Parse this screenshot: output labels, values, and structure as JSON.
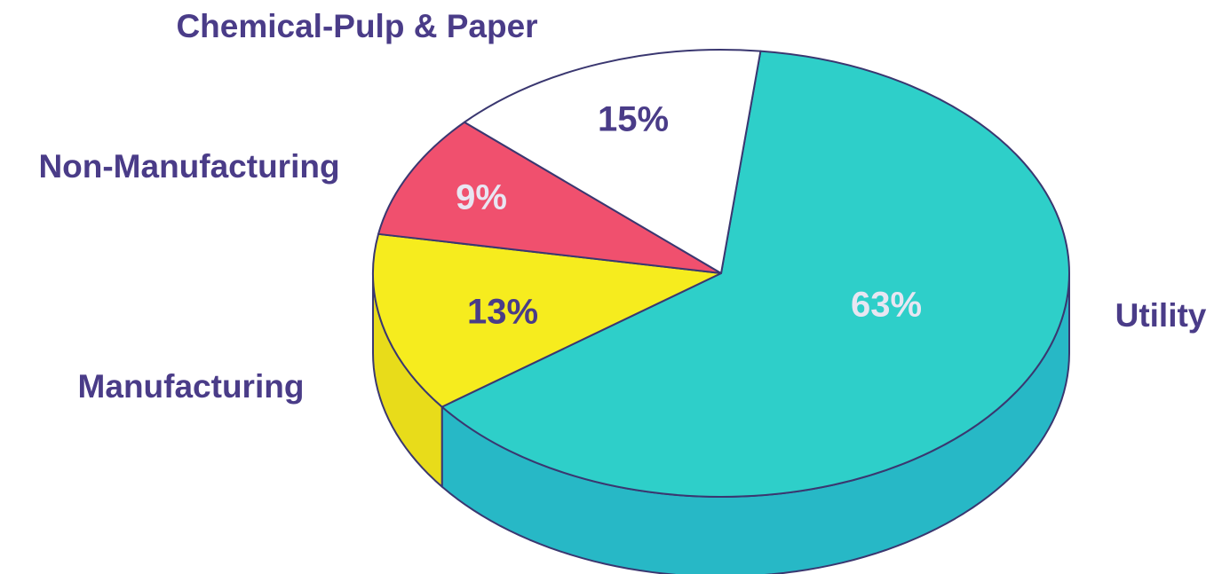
{
  "chart_data": {
    "type": "pie",
    "style": "3d-exploded-pie",
    "categories": [
      "Utility",
      "Manufacturing",
      "Non-Manufacturing",
      "Chemical-Pulp & Paper"
    ],
    "values": [
      63,
      13,
      9,
      15
    ],
    "value_labels": [
      "63%",
      "13%",
      "9%",
      "15%"
    ],
    "colors": [
      "#2ecfc9",
      "#f6ec1e",
      "#f0506e",
      "#ffffff"
    ],
    "side_colors": [
      "#27b8c6",
      "#e8dc1a",
      "#d84560",
      "#e6e6e6"
    ],
    "label_colors": {
      "category": "#4a3c88",
      "value_on_light": "#4a3c88",
      "value_on_dark": "#e8e6f2"
    },
    "title": "",
    "legend": "none",
    "data_labels": "inside"
  }
}
